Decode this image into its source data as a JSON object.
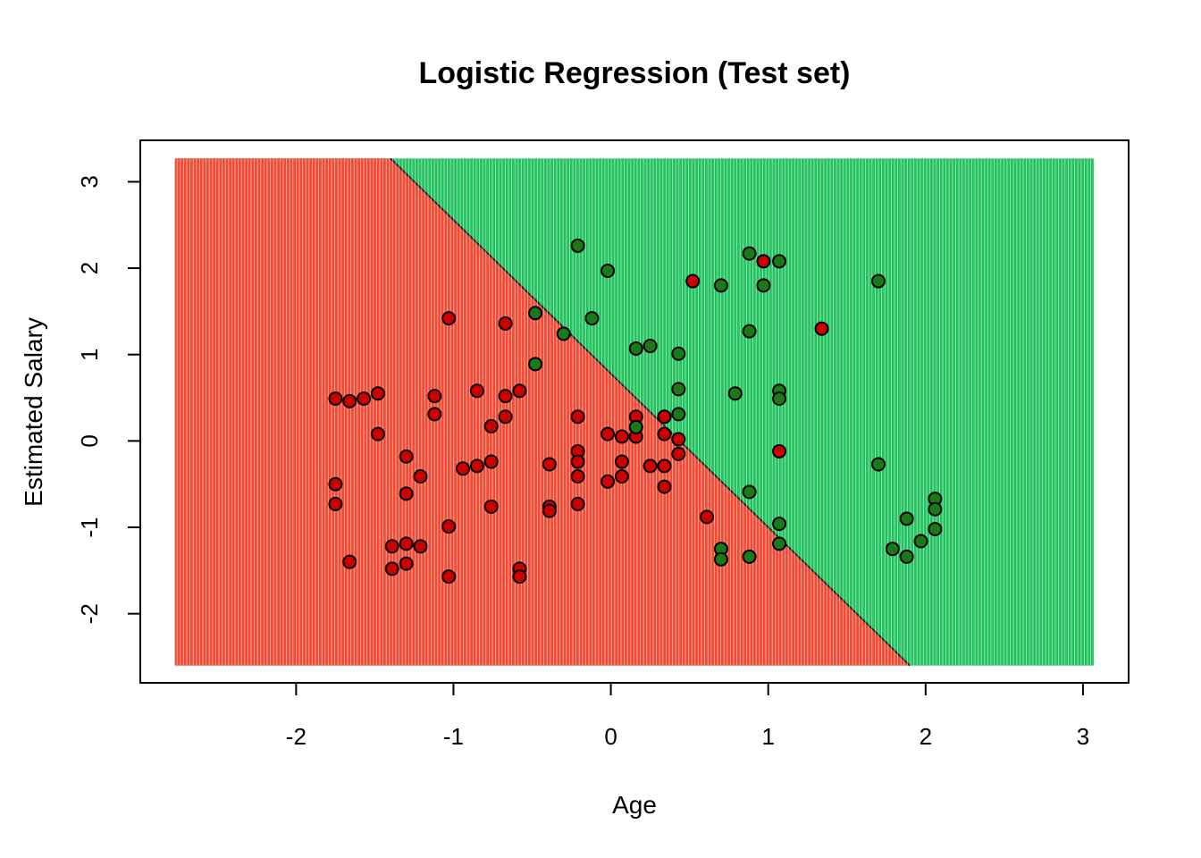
{
  "chart_data": {
    "type": "scatter",
    "title": "Logistic Regression (Test set)",
    "xlabel": "Age",
    "ylabel": "Estimated Salary",
    "xlim": [
      -2.99,
      3.29
    ],
    "ylim": [
      -2.8,
      3.48
    ],
    "xticks": [
      -2,
      -1,
      0,
      1,
      2,
      3
    ],
    "yticks": [
      -2,
      -1,
      0,
      1,
      2,
      3
    ],
    "grid": false,
    "region_x_range": [
      -2.77,
      3.07
    ],
    "region_y_range": [
      -2.6,
      3.27
    ],
    "decision_boundary": {
      "points": [
        [
          -1.4,
          3.27
        ],
        [
          1.9,
          -2.6
        ]
      ]
    },
    "colors": {
      "region_class0": "#f24a33",
      "region_class1": "#22c35e",
      "point_class0": "#cc0000",
      "point_class1": "#1a7a1a",
      "stripe": "#ffffff"
    },
    "series": [
      {
        "class": 0,
        "points": [
          [
            -1.75,
            0.49
          ],
          [
            -1.66,
            0.46
          ],
          [
            -1.57,
            0.49
          ],
          [
            -1.48,
            0.55
          ],
          [
            -1.48,
            0.08
          ],
          [
            -1.75,
            -0.5
          ],
          [
            -1.75,
            -0.73
          ],
          [
            -1.66,
            -1.4
          ],
          [
            -1.39,
            -1.22
          ],
          [
            -1.39,
            -1.48
          ],
          [
            -1.3,
            -1.19
          ],
          [
            -1.3,
            -1.42
          ],
          [
            -1.3,
            -0.61
          ],
          [
            -1.3,
            -0.18
          ],
          [
            -1.21,
            -0.41
          ],
          [
            -1.21,
            -1.22
          ],
          [
            -1.12,
            0.52
          ],
          [
            -1.12,
            0.31
          ],
          [
            -1.03,
            1.42
          ],
          [
            -1.03,
            -0.99
          ],
          [
            -1.03,
            -1.57
          ],
          [
            -0.94,
            -0.32
          ],
          [
            -0.85,
            0.58
          ],
          [
            -0.85,
            -0.29
          ],
          [
            -0.76,
            0.17
          ],
          [
            -0.76,
            -0.24
          ],
          [
            -0.76,
            -0.76
          ],
          [
            -0.67,
            1.36
          ],
          [
            -0.67,
            0.52
          ],
          [
            -0.67,
            0.28
          ],
          [
            -0.58,
            0.58
          ],
          [
            -0.58,
            -1.48
          ],
          [
            -0.58,
            -1.57
          ],
          [
            -0.39,
            -0.27
          ],
          [
            -0.39,
            -0.76
          ],
          [
            -0.39,
            -0.81
          ],
          [
            -0.21,
            0.28
          ],
          [
            -0.21,
            -0.12
          ],
          [
            -0.21,
            -0.24
          ],
          [
            -0.21,
            -0.41
          ],
          [
            -0.21,
            -0.73
          ],
          [
            -0.02,
            0.08
          ],
          [
            -0.02,
            -0.47
          ],
          [
            0.07,
            0.05
          ],
          [
            0.07,
            -0.24
          ],
          [
            0.07,
            -0.41
          ],
          [
            0.16,
            0.28
          ],
          [
            0.16,
            0.05
          ],
          [
            0.25,
            -0.29
          ],
          [
            0.34,
            0.28
          ],
          [
            0.34,
            0.08
          ],
          [
            0.34,
            -0.29
          ],
          [
            0.34,
            -0.53
          ],
          [
            0.43,
            0.02
          ],
          [
            0.43,
            -0.15
          ],
          [
            0.52,
            1.85
          ],
          [
            0.61,
            -0.88
          ],
          [
            0.97,
            2.08
          ],
          [
            1.07,
            -0.12
          ],
          [
            1.34,
            1.3
          ]
        ]
      },
      {
        "class": 1,
        "points": [
          [
            -0.21,
            2.26
          ],
          [
            -0.02,
            1.97
          ],
          [
            -0.48,
            1.48
          ],
          [
            -0.12,
            1.42
          ],
          [
            -0.3,
            1.24
          ],
          [
            -0.48,
            0.89
          ],
          [
            0.16,
            1.07
          ],
          [
            0.25,
            1.1
          ],
          [
            0.43,
            1.01
          ],
          [
            0.43,
            0.6
          ],
          [
            0.43,
            0.31
          ],
          [
            0.16,
            0.16
          ],
          [
            0.7,
            1.8
          ],
          [
            0.79,
            0.55
          ],
          [
            0.88,
            2.17
          ],
          [
            0.88,
            1.27
          ],
          [
            0.97,
            1.8
          ],
          [
            1.07,
            2.08
          ],
          [
            1.07,
            0.58
          ],
          [
            1.07,
            0.49
          ],
          [
            0.88,
            -0.59
          ],
          [
            1.07,
            -0.96
          ],
          [
            1.07,
            -1.19
          ],
          [
            0.7,
            -1.25
          ],
          [
            0.7,
            -1.37
          ],
          [
            0.88,
            -1.34
          ],
          [
            1.7,
            1.85
          ],
          [
            1.7,
            -0.27
          ],
          [
            1.79,
            -1.25
          ],
          [
            1.88,
            -0.9
          ],
          [
            1.88,
            -1.34
          ],
          [
            1.97,
            -1.16
          ],
          [
            2.06,
            -0.67
          ],
          [
            2.06,
            -0.79
          ],
          [
            2.06,
            -1.02
          ]
        ]
      }
    ]
  }
}
